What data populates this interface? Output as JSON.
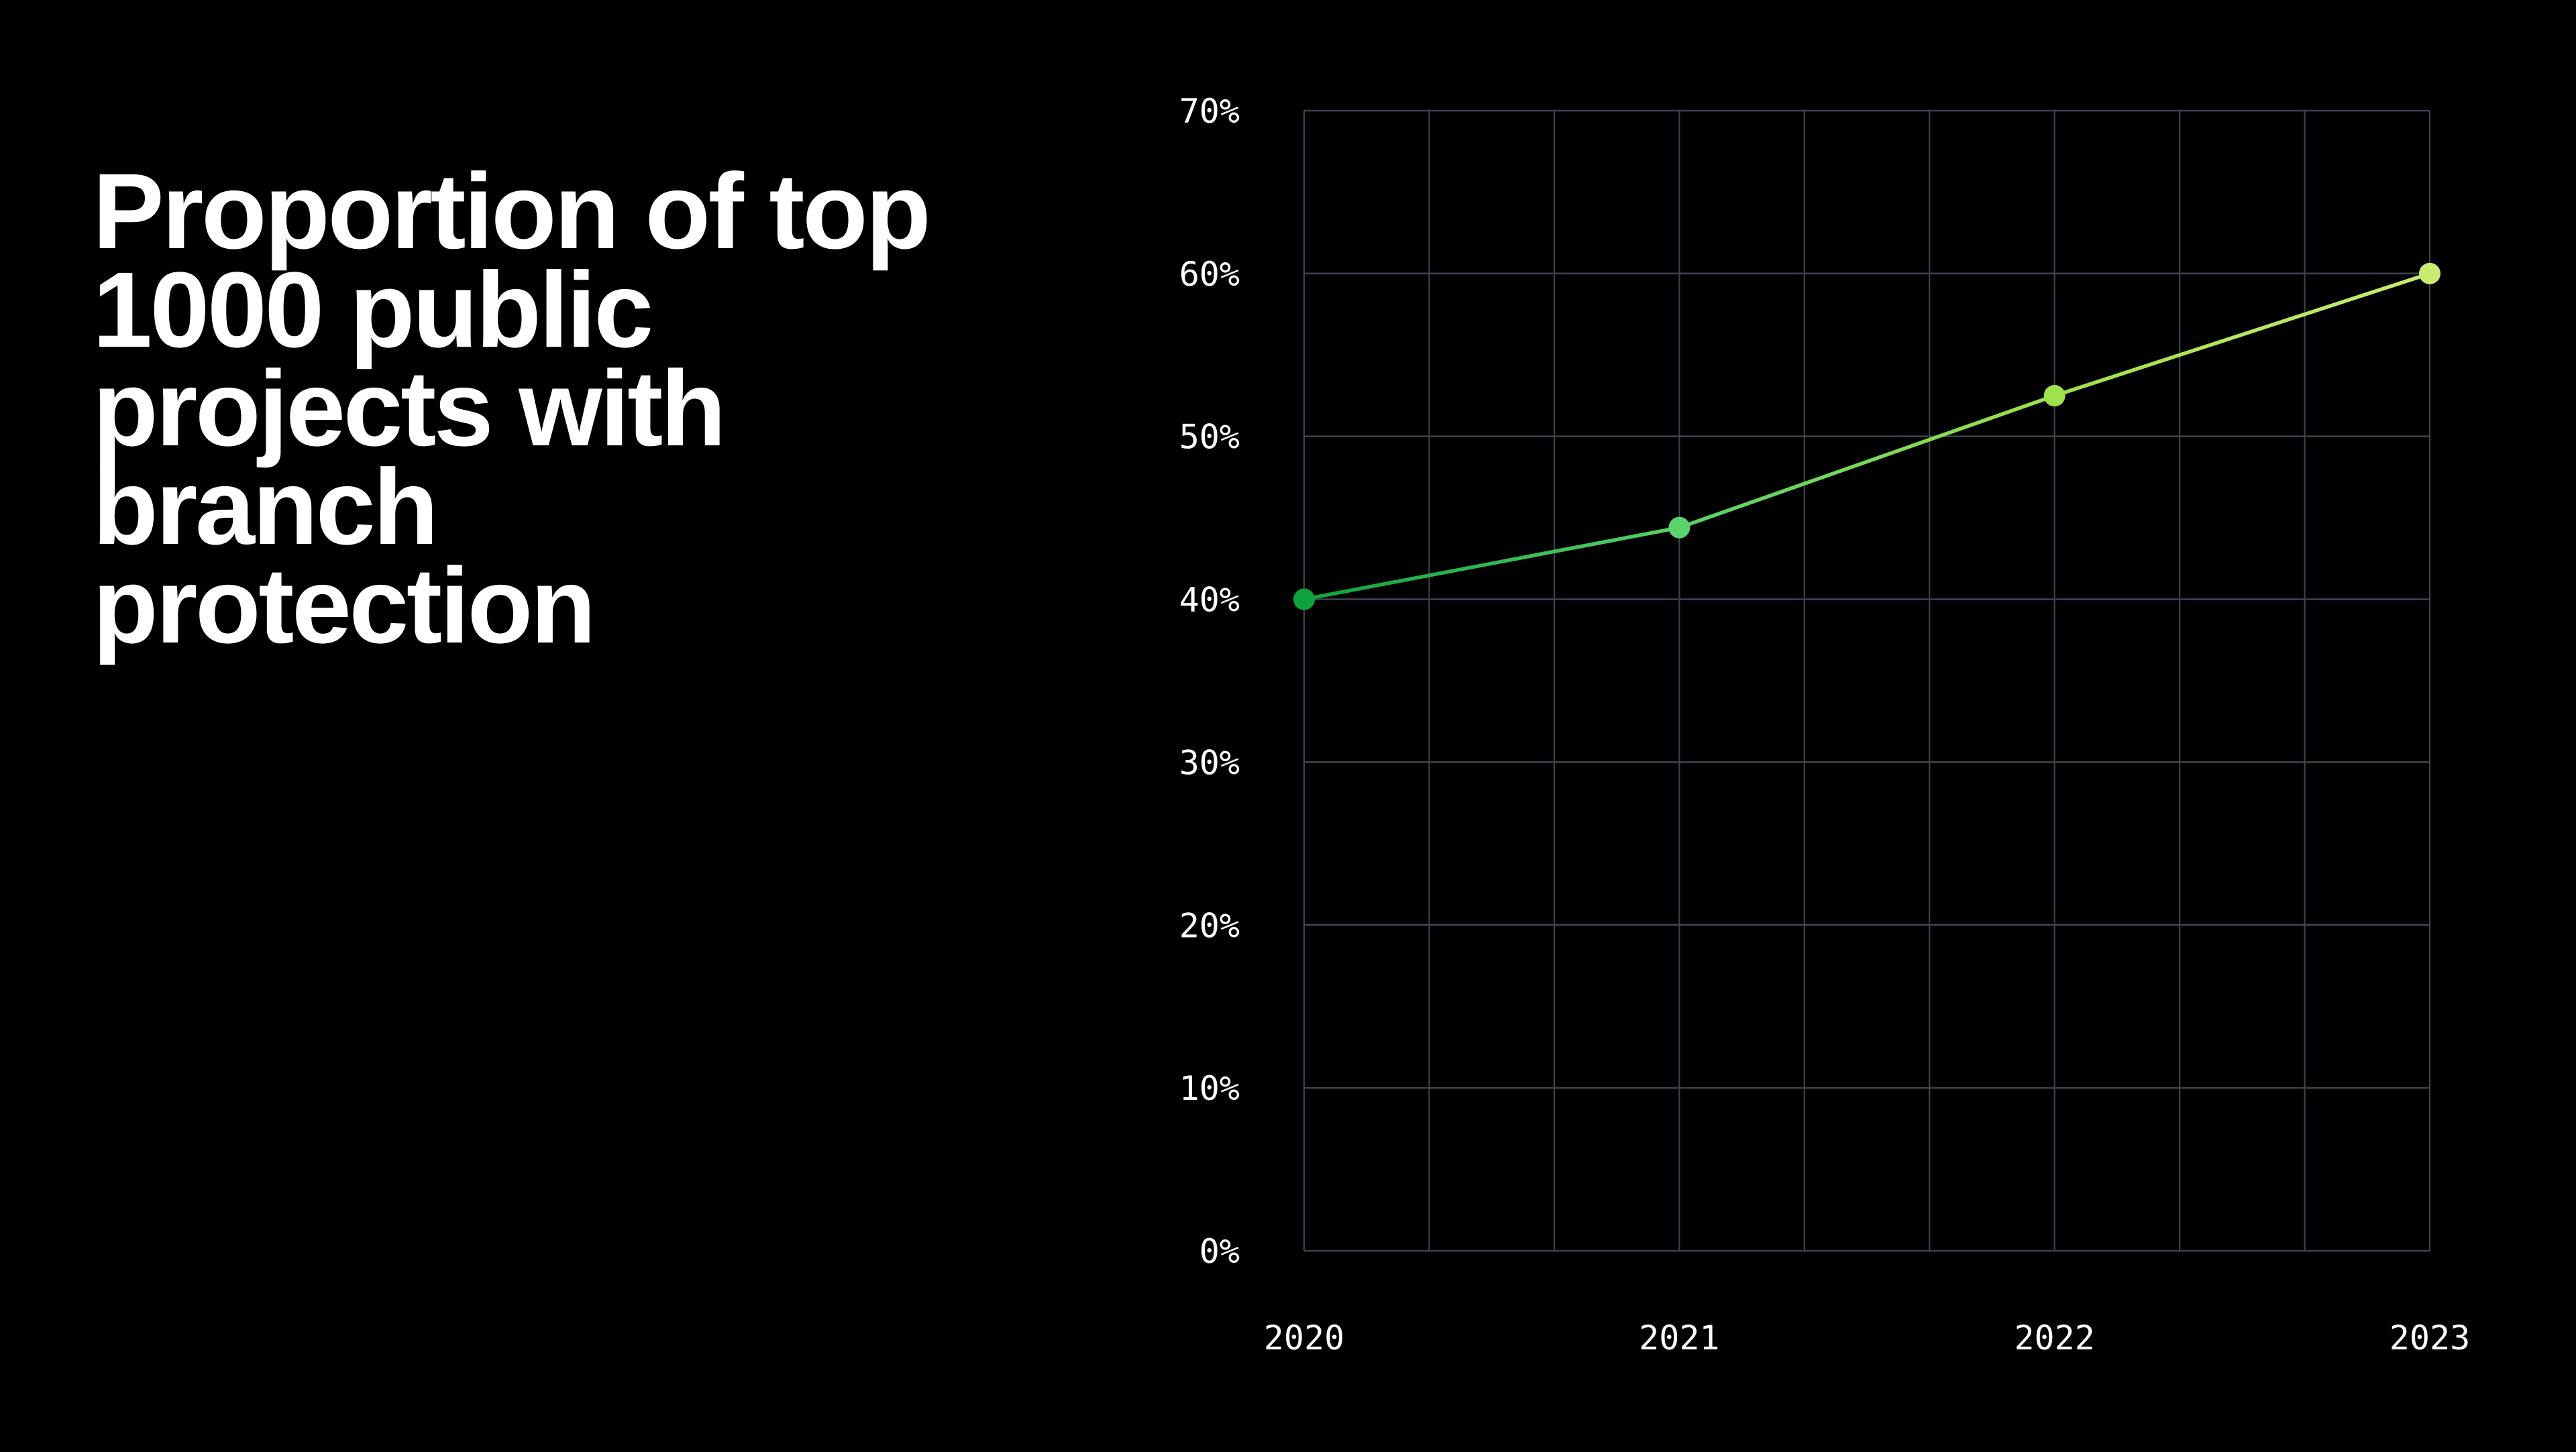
{
  "page": {
    "background": "#000000",
    "text_color": "#ffffff"
  },
  "hero": {
    "title": "Proportion of top 1000 public projects with branch protection",
    "title_lines": [
      "Proportion of top",
      "1000 public",
      "projects with",
      "branch",
      "protection"
    ]
  },
  "chart_data": {
    "type": "line",
    "title": "Proportion of top 1000 public projects with branch protection",
    "categories": [
      "2020",
      "2021",
      "2022",
      "2023"
    ],
    "values": [
      40,
      44.4,
      52.5,
      60
    ],
    "ylabel": "",
    "xlabel": "",
    "ylim": [
      0,
      70
    ],
    "y_tick_labels": [
      "70%",
      "60%",
      "50%",
      "40%",
      "30%",
      "20%",
      "10%",
      "0%"
    ],
    "y_tick_step_percent": 10,
    "x_minor_divisions_per_interval": 3,
    "grid": "on",
    "legend": "none",
    "colors": {
      "grid": "#3d424e",
      "axis_label": "#ffffff",
      "line_gradient_stops": [
        "#0da23c",
        "#57d068",
        "#9ee04b",
        "#c9ec73"
      ],
      "point_colors": [
        "#0da23c",
        "#5cd26a",
        "#9fe24c",
        "#c8eb72"
      ]
    }
  }
}
